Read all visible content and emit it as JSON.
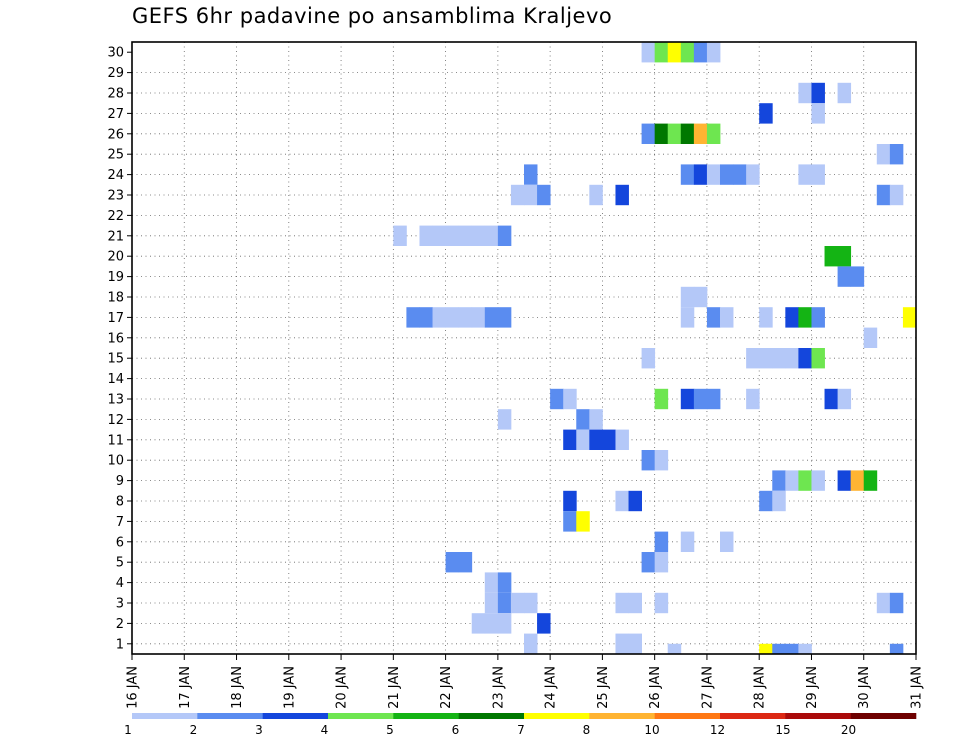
{
  "title": "GEFS 6hr padavine po ansamblima Kraljevo",
  "chart_data": {
    "type": "heatmap",
    "title": "GEFS 6hr padavine po ansamblima Kraljevo",
    "x_tick_labels": [
      "16 JAN",
      "17 JAN",
      "18 JAN",
      "19 JAN",
      "20 JAN",
      "21 JAN",
      "22 JAN",
      "23 JAN",
      "24 JAN",
      "25 JAN",
      "26 JAN",
      "27 JAN",
      "28 JAN",
      "29 JAN",
      "30 JAN",
      "31 JAN"
    ],
    "xlim": [
      16,
      31
    ],
    "y_tick_labels": [
      "1",
      "2",
      "3",
      "4",
      "5",
      "6",
      "7",
      "8",
      "9",
      "10",
      "11",
      "12",
      "13",
      "14",
      "15",
      "16",
      "17",
      "18",
      "19",
      "20",
      "21",
      "22",
      "23",
      "24",
      "25",
      "26",
      "27",
      "28",
      "29",
      "30"
    ],
    "ylim": [
      0,
      30
    ],
    "step_hours": 6,
    "grid": true,
    "color_scale": {
      "labels": [
        "1",
        "2",
        "3",
        "4",
        "5",
        "6",
        "7",
        "8",
        "10",
        "12",
        "15",
        "20"
      ],
      "bins": [
        {
          "min": 1,
          "max": 2,
          "color": "#b4c8f8"
        },
        {
          "min": 2,
          "max": 3,
          "color": "#5a8cf0"
        },
        {
          "min": 3,
          "max": 4,
          "color": "#1446dc"
        },
        {
          "min": 4,
          "max": 5,
          "color": "#6ee650"
        },
        {
          "min": 5,
          "max": 6,
          "color": "#14b414"
        },
        {
          "min": 6,
          "max": 7,
          "color": "#007800"
        },
        {
          "min": 7,
          "max": 8,
          "color": "#ffff00"
        },
        {
          "min": 8,
          "max": 10,
          "color": "#ffb432"
        },
        {
          "min": 10,
          "max": 12,
          "color": "#ff7814"
        },
        {
          "min": 12,
          "max": 15,
          "color": "#dc2814"
        },
        {
          "min": 15,
          "max": 20,
          "color": "#aa0a0a"
        },
        {
          "min": 20,
          "max": null,
          "color": "#6e0000"
        }
      ]
    },
    "cells_format": [
      "member",
      "start_day",
      "bin"
    ],
    "cells": [
      [
        30,
        25.75,
        1
      ],
      [
        30,
        26.0,
        4
      ],
      [
        30,
        26.25,
        7
      ],
      [
        30,
        26.5,
        4
      ],
      [
        30,
        26.75,
        2
      ],
      [
        30,
        27.0,
        1
      ],
      [
        28,
        28.75,
        1
      ],
      [
        28,
        29.0,
        3
      ],
      [
        28,
        29.5,
        1
      ],
      [
        27,
        28.0,
        3
      ],
      [
        27,
        29.0,
        1
      ],
      [
        26,
        25.75,
        2
      ],
      [
        26,
        26.0,
        6
      ],
      [
        26,
        26.25,
        4
      ],
      [
        26,
        26.5,
        6
      ],
      [
        26,
        26.75,
        8
      ],
      [
        26,
        27.0,
        4
      ],
      [
        25,
        30.25,
        1
      ],
      [
        25,
        30.5,
        2
      ],
      [
        24,
        23.5,
        2
      ],
      [
        24,
        26.5,
        2
      ],
      [
        24,
        26.75,
        3
      ],
      [
        24,
        27.0,
        1
      ],
      [
        24,
        27.25,
        2
      ],
      [
        24,
        27.5,
        2
      ],
      [
        24,
        27.75,
        1
      ],
      [
        24,
        28.75,
        1
      ],
      [
        24,
        29.0,
        1
      ],
      [
        23,
        23.25,
        1
      ],
      [
        23,
        23.5,
        1
      ],
      [
        23,
        23.75,
        2
      ],
      [
        23,
        24.75,
        1
      ],
      [
        23,
        25.25,
        3
      ],
      [
        23,
        30.25,
        2
      ],
      [
        23,
        30.5,
        1
      ],
      [
        21,
        21.0,
        1
      ],
      [
        21,
        21.5,
        1
      ],
      [
        21,
        21.75,
        1
      ],
      [
        21,
        22.0,
        1
      ],
      [
        21,
        22.25,
        1
      ],
      [
        21,
        22.5,
        1
      ],
      [
        21,
        22.75,
        1
      ],
      [
        21,
        23.0,
        2
      ],
      [
        20,
        29.25,
        5
      ],
      [
        20,
        29.5,
        5
      ],
      [
        19,
        29.5,
        2
      ],
      [
        19,
        29.75,
        2
      ],
      [
        18,
        26.5,
        1
      ],
      [
        18,
        26.75,
        1
      ],
      [
        17,
        21.25,
        2
      ],
      [
        17,
        21.5,
        2
      ],
      [
        17,
        21.75,
        1
      ],
      [
        17,
        22.0,
        1
      ],
      [
        17,
        22.25,
        1
      ],
      [
        17,
        22.5,
        1
      ],
      [
        17,
        22.75,
        2
      ],
      [
        17,
        23.0,
        2
      ],
      [
        17,
        26.5,
        1
      ],
      [
        17,
        27.0,
        2
      ],
      [
        17,
        27.25,
        1
      ],
      [
        17,
        28.0,
        1
      ],
      [
        17,
        28.5,
        3
      ],
      [
        17,
        28.75,
        5
      ],
      [
        17,
        29.0,
        2
      ],
      [
        17,
        30.75,
        7
      ],
      [
        16,
        30.0,
        1
      ],
      [
        15,
        27.75,
        1
      ],
      [
        15,
        28.0,
        1
      ],
      [
        15,
        28.25,
        1
      ],
      [
        15,
        28.5,
        1
      ],
      [
        15,
        28.75,
        3
      ],
      [
        15,
        29.0,
        4
      ],
      [
        15,
        25.75,
        1
      ],
      [
        13,
        24.0,
        2
      ],
      [
        13,
        24.25,
        1
      ],
      [
        13,
        26.0,
        4
      ],
      [
        13,
        26.5,
        3
      ],
      [
        13,
        26.75,
        2
      ],
      [
        13,
        27.0,
        2
      ],
      [
        13,
        27.75,
        1
      ],
      [
        13,
        29.25,
        3
      ],
      [
        13,
        29.5,
        1
      ],
      [
        12,
        23.0,
        1
      ],
      [
        12,
        24.5,
        2
      ],
      [
        12,
        24.75,
        1
      ],
      [
        11,
        24.25,
        3
      ],
      [
        11,
        24.5,
        1
      ],
      [
        11,
        24.75,
        3
      ],
      [
        11,
        25.0,
        3
      ],
      [
        11,
        25.25,
        1
      ],
      [
        10,
        25.75,
        2
      ],
      [
        10,
        26.0,
        1
      ],
      [
        9,
        28.25,
        2
      ],
      [
        9,
        28.5,
        1
      ],
      [
        9,
        28.75,
        4
      ],
      [
        9,
        29.0,
        1
      ],
      [
        9,
        29.5,
        3
      ],
      [
        9,
        29.75,
        8
      ],
      [
        9,
        30.0,
        5
      ],
      [
        8,
        24.25,
        3
      ],
      [
        8,
        25.25,
        1
      ],
      [
        8,
        25.5,
        3
      ],
      [
        8,
        28.0,
        2
      ],
      [
        8,
        28.25,
        1
      ],
      [
        7,
        24.25,
        2
      ],
      [
        7,
        24.5,
        7
      ],
      [
        6,
        26.0,
        2
      ],
      [
        6,
        26.5,
        1
      ],
      [
        6,
        27.25,
        1
      ],
      [
        5,
        22.0,
        2
      ],
      [
        5,
        22.25,
        2
      ],
      [
        5,
        25.75,
        2
      ],
      [
        5,
        26.0,
        1
      ],
      [
        4,
        22.75,
        1
      ],
      [
        4,
        23.0,
        2
      ],
      [
        3,
        22.75,
        1
      ],
      [
        3,
        23.0,
        2
      ],
      [
        3,
        23.25,
        1
      ],
      [
        3,
        23.5,
        1
      ],
      [
        3,
        25.25,
        1
      ],
      [
        3,
        25.5,
        1
      ],
      [
        3,
        26.0,
        1
      ],
      [
        3,
        30.25,
        1
      ],
      [
        3,
        30.5,
        2
      ],
      [
        2,
        22.5,
        1
      ],
      [
        2,
        22.75,
        1
      ],
      [
        2,
        23.0,
        1
      ],
      [
        2,
        23.75,
        3
      ],
      [
        1,
        23.5,
        1
      ],
      [
        1,
        25.25,
        1
      ],
      [
        1,
        25.5,
        1
      ],
      [
        0,
        26.25,
        1
      ],
      [
        0,
        28.0,
        7
      ],
      [
        0,
        28.25,
        2
      ],
      [
        0,
        28.5,
        2
      ],
      [
        0,
        28.75,
        1
      ],
      [
        0,
        30.5,
        2
      ]
    ]
  }
}
